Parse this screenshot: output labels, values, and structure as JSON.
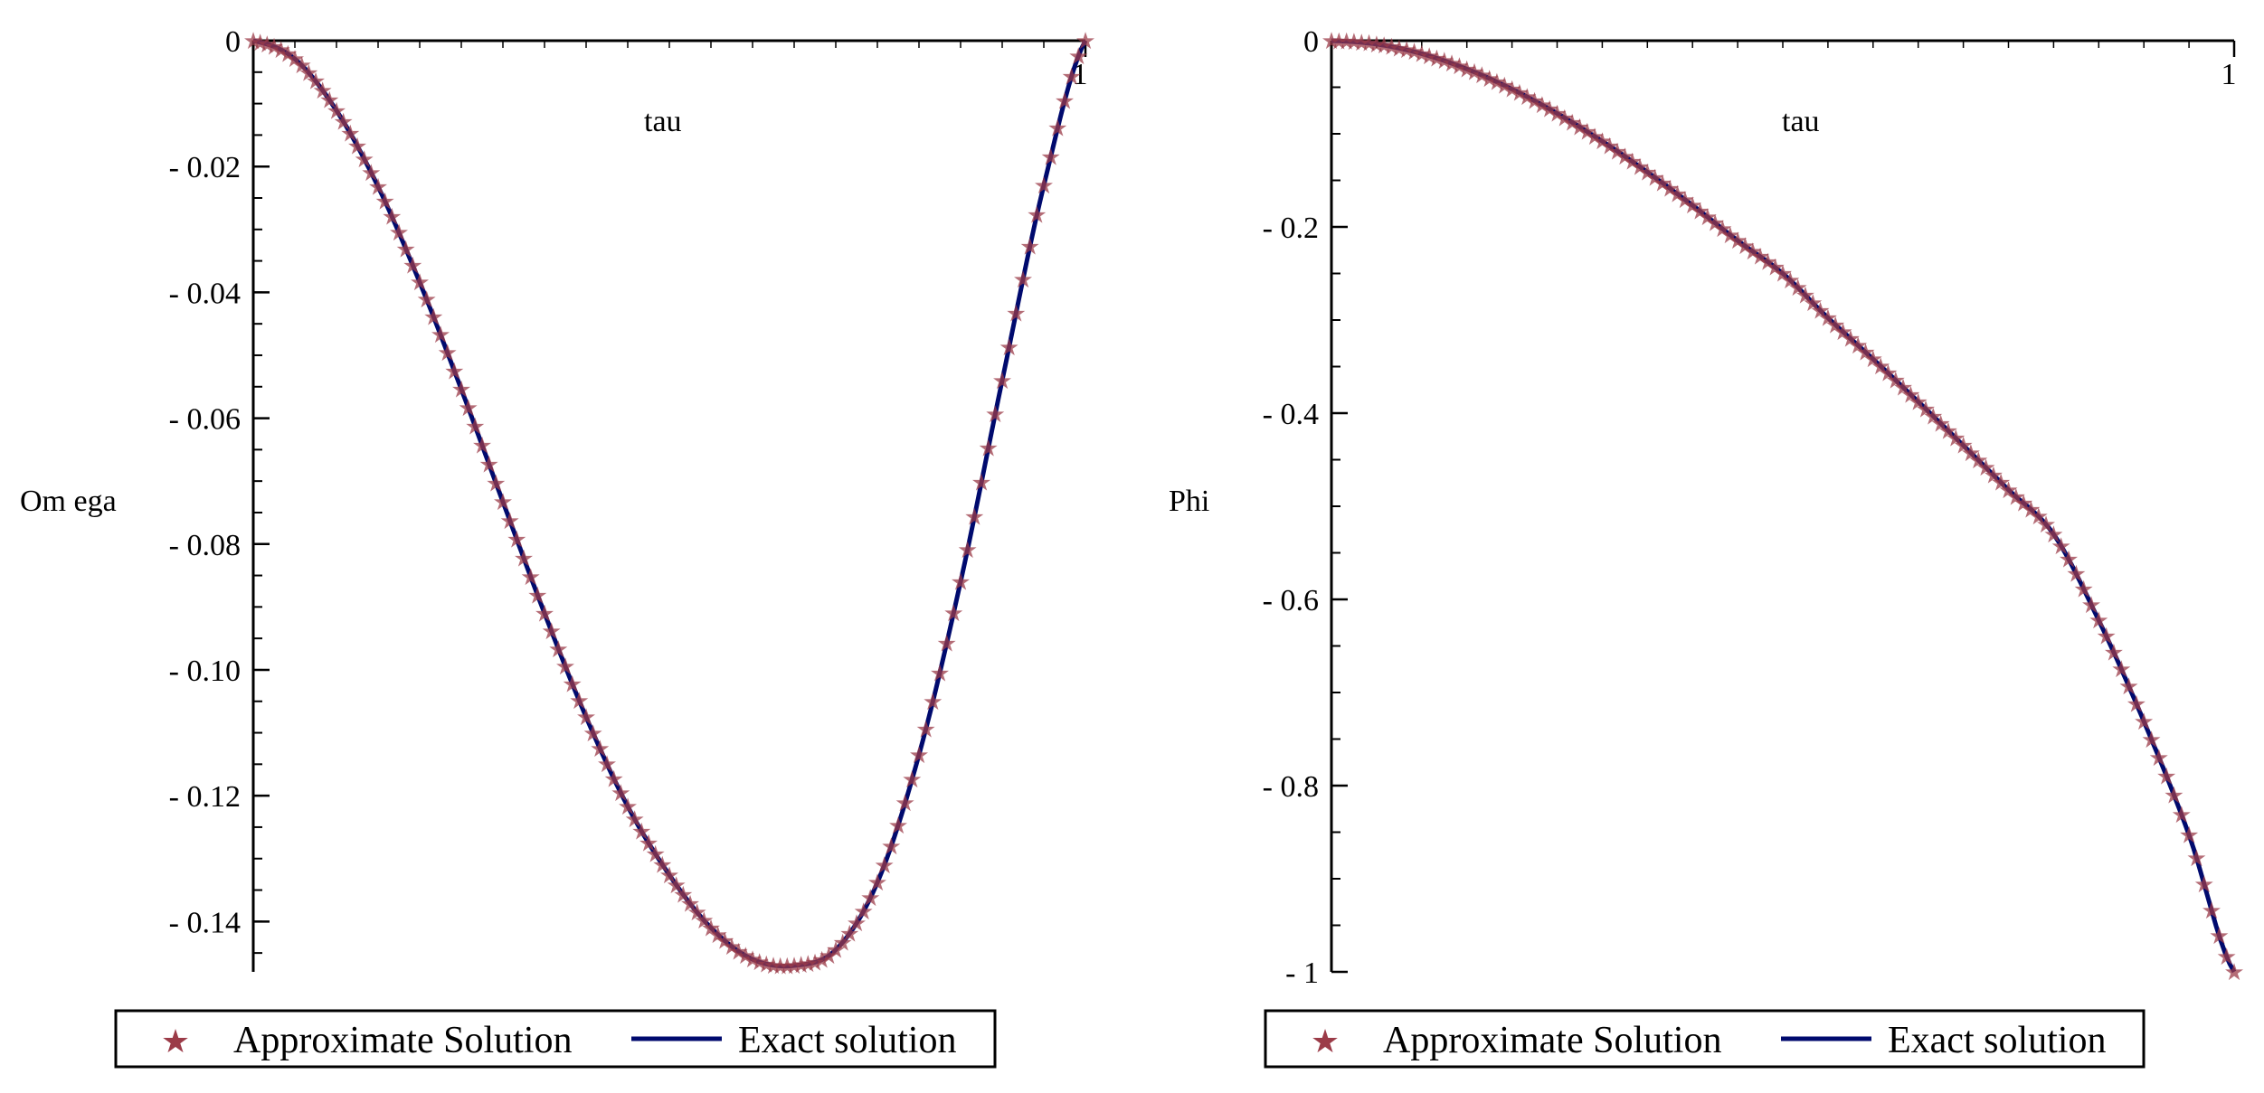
{
  "colors": {
    "approx": "#9b3b48",
    "exact": "#000a6e",
    "axis": "#000000"
  },
  "chart_data": [
    {
      "type": "line",
      "xlabel": "tau",
      "ylabel": "Om ega",
      "xlim": [
        0,
        1
      ],
      "ylim": [
        -0.148,
        0
      ],
      "x_tick_labels": [
        {
          "value": 1,
          "label": "1"
        }
      ],
      "y_tick_labels": [
        {
          "value": 0,
          "label": "0"
        },
        {
          "value": -0.02,
          "label": "- 0.02"
        },
        {
          "value": -0.04,
          "label": "- 0.04"
        },
        {
          "value": -0.06,
          "label": "- 0.06"
        },
        {
          "value": -0.08,
          "label": "- 0.08"
        },
        {
          "value": -0.1,
          "label": "- 0.10"
        },
        {
          "value": -0.12,
          "label": "- 0.12"
        },
        {
          "value": -0.14,
          "label": "- 0.14"
        }
      ],
      "y_minor_step": 0.005,
      "series": [
        {
          "name": "Approximate Solution",
          "style": "markers",
          "marker": "★",
          "x": [
            0.0,
            0.05,
            0.1,
            0.15,
            0.2,
            0.25,
            0.3,
            0.35,
            0.4,
            0.45,
            0.5,
            0.55,
            0.6,
            0.65,
            0.7,
            0.75,
            0.8,
            0.85,
            0.9,
            0.95,
            1.0
          ],
          "y": [
            0.0,
            -0.0029,
            -0.0111,
            -0.0232,
            -0.0384,
            -0.0554,
            -0.0733,
            -0.091,
            -0.1075,
            -0.1217,
            -0.1326,
            -0.141,
            -0.146,
            -0.147,
            -0.1445,
            -0.1338,
            -0.1135,
            -0.086,
            -0.054,
            -0.023,
            0.0
          ]
        },
        {
          "name": "Exact solution",
          "style": "line",
          "x": [
            0.0,
            0.05,
            0.1,
            0.15,
            0.2,
            0.25,
            0.3,
            0.35,
            0.4,
            0.45,
            0.5,
            0.55,
            0.6,
            0.65,
            0.7,
            0.75,
            0.8,
            0.85,
            0.9,
            0.95,
            1.0
          ],
          "y": [
            0.0,
            -0.0029,
            -0.0111,
            -0.0232,
            -0.0384,
            -0.0554,
            -0.0733,
            -0.091,
            -0.1075,
            -0.1217,
            -0.1326,
            -0.141,
            -0.146,
            -0.147,
            -0.1445,
            -0.1338,
            -0.1135,
            -0.086,
            -0.054,
            -0.023,
            0.0
          ]
        }
      ],
      "legend": [
        "Approximate Solution",
        "Exact solution"
      ]
    },
    {
      "type": "line",
      "xlabel": "tau",
      "ylabel": "Phi",
      "xlim": [
        0,
        1
      ],
      "ylim": [
        -1,
        0
      ],
      "x_tick_labels": [
        {
          "value": 1,
          "label": "1"
        }
      ],
      "y_tick_labels": [
        {
          "value": 0,
          "label": "0"
        },
        {
          "value": -0.2,
          "label": "- 0.2"
        },
        {
          "value": -0.4,
          "label": "- 0.4"
        },
        {
          "value": -0.6,
          "label": "- 0.6"
        },
        {
          "value": -0.8,
          "label": "- 0.8"
        },
        {
          "value": -1,
          "label": "- 1"
        }
      ],
      "y_minor_step": 0.05,
      "series": [
        {
          "name": "Approximate Solution",
          "style": "markers",
          "marker": "★",
          "x": [
            0.0,
            0.05,
            0.1,
            0.15,
            0.2,
            0.25,
            0.3,
            0.35,
            0.4,
            0.45,
            0.5,
            0.55,
            0.6,
            0.65,
            0.7,
            0.75,
            0.8,
            0.85,
            0.9,
            0.95,
            1.0
          ],
          "y": [
            0.0,
            -0.0037,
            -0.014,
            -0.0304,
            -0.052,
            -0.0781,
            -0.108,
            -0.1411,
            -0.1768,
            -0.2147,
            -0.25,
            -0.2977,
            -0.3419,
            -0.3877,
            -0.4347,
            -0.4823,
            -0.53,
            -0.6225,
            -0.731,
            -0.853,
            -1.0
          ]
        },
        {
          "name": "Exact solution",
          "style": "line",
          "x": [
            0.0,
            0.05,
            0.1,
            0.15,
            0.2,
            0.25,
            0.3,
            0.35,
            0.4,
            0.45,
            0.5,
            0.55,
            0.6,
            0.65,
            0.7,
            0.75,
            0.8,
            0.85,
            0.9,
            0.95,
            1.0
          ],
          "y": [
            0.0,
            -0.0037,
            -0.014,
            -0.0304,
            -0.052,
            -0.0781,
            -0.108,
            -0.1411,
            -0.1768,
            -0.2147,
            -0.25,
            -0.2977,
            -0.3419,
            -0.3877,
            -0.4347,
            -0.4823,
            -0.53,
            -0.6225,
            -0.731,
            -0.853,
            -1.0
          ]
        }
      ],
      "legend": [
        "Approximate Solution",
        "Exact solution"
      ]
    }
  ]
}
